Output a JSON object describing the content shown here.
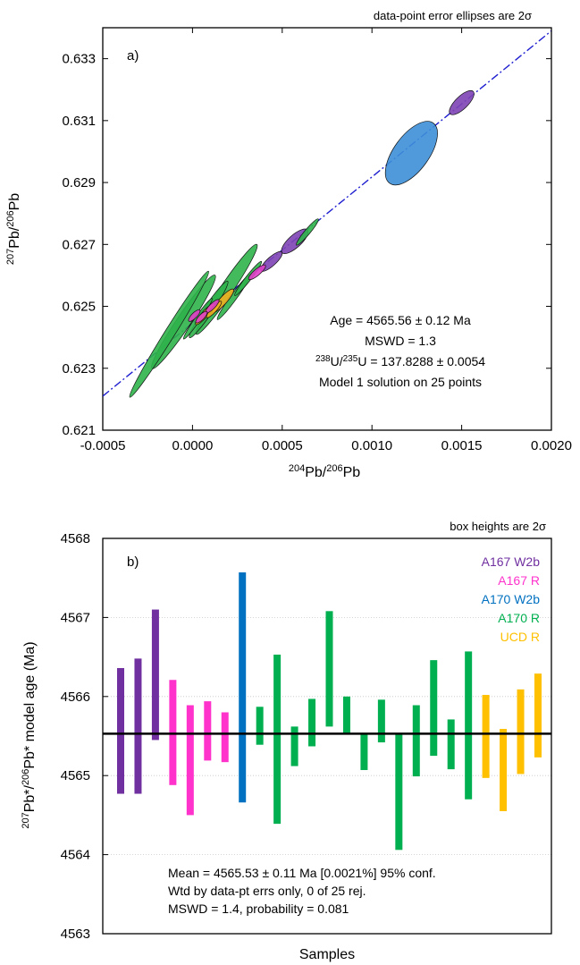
{
  "panel_a": {
    "note": "data-point error ellipses are 2σ",
    "panel_label": "a)",
    "xlabel": {
      "sup": "204",
      "base": "Pb/",
      "sup2": "206",
      "base2": "Pb"
    },
    "ylabel": {
      "sup": "207",
      "base": "Pb/",
      "sup2": "206",
      "base2": "Pb"
    },
    "annotation": {
      "line1": "Age = 4565.56 ± 0.12 Ma",
      "line2": "MSWD = 1.3",
      "line3_sup1": "238",
      "line3_a": "U/",
      "line3_sup2": "235",
      "line3_b": "U = 137.8288 ± 0.0054",
      "line4": "Model 1 solution on 25 points"
    }
  },
  "panel_b": {
    "note": "box heights are 2σ",
    "panel_label": "b)",
    "ylabel": {
      "sup": "207",
      "a": "Pb*/",
      "sup2": "206",
      "b": "Pb* model age (Ma)"
    },
    "xlabel": "Samples",
    "legend": [
      {
        "label": "A167 W2b",
        "color": "#7030a0"
      },
      {
        "label": "A167 R",
        "color": "#ff33cc"
      },
      {
        "label": "A170 W2b",
        "color": "#0070c0"
      },
      {
        "label": "A170 R",
        "color": "#00b050"
      },
      {
        "label": "UCD R",
        "color": "#ffc000"
      }
    ],
    "stats": {
      "line1": "Mean = 4565.53 ± 0.11 Ma [0.0021%]  95% conf.",
      "line2": "Wtd by data-pt errs only, 0 of 25 rej.",
      "line3": "MSWD = 1.4, probability = 0.081"
    }
  },
  "chart_data": [
    {
      "type": "scatter",
      "title": "",
      "xlabel": "204Pb/206Pb",
      "ylabel": "207Pb/206Pb",
      "xlim": [
        -0.0005,
        0.002
      ],
      "ylim": [
        0.621,
        0.634
      ],
      "xticks": [
        "-0.0005",
        "0.0000",
        "0.0005",
        "0.0010",
        "0.0015",
        "0.0020"
      ],
      "yticks": [
        "0.621",
        "0.623",
        "0.625",
        "0.627",
        "0.629",
        "0.631",
        "0.633"
      ],
      "isochron": {
        "x": [
          -0.0005,
          0.002
        ],
        "y": [
          0.6221,
          0.6339
        ],
        "color": "#1f1fd0",
        "style": "dash-dot"
      },
      "ellipses": [
        {
          "group": "A170 W2b",
          "color": "#3d8fd8",
          "cx": 0.00122,
          "cy": 0.62995,
          "rx": 0.00028,
          "ry": 0.0012,
          "angle": 54
        },
        {
          "group": "A167 W2b",
          "color": "#7e44b4",
          "cx": 0.0015,
          "cy": 0.63158,
          "rx": 0.0001,
          "ry": 0.00052,
          "angle": 44
        },
        {
          "group": "A167 W2b",
          "color": "#7e44b4",
          "cx": 0.00057,
          "cy": 0.6271,
          "rx": 0.0001,
          "ry": 0.00055,
          "angle": 42
        },
        {
          "group": "A167 W2b",
          "color": "#7e44b4",
          "cx": 0.00044,
          "cy": 0.62645,
          "rx": 7e-05,
          "ry": 0.00045,
          "angle": 42
        },
        {
          "group": "A170 R",
          "color": "#2fb34a",
          "cx": 0.00019,
          "cy": 0.62555,
          "rx": 0.0001,
          "ry": 0.00175,
          "angle": 56
        },
        {
          "group": "A170 R",
          "color": "#2fb34a",
          "cx": -5e-05,
          "cy": 0.6245,
          "rx": 0.00011,
          "ry": 0.00182,
          "angle": 56
        },
        {
          "group": "A170 R",
          "color": "#2fb34a",
          "cx": -0.00013,
          "cy": 0.6241,
          "rx": 8e-05,
          "ry": 0.0024,
          "angle": 58
        },
        {
          "group": "A170 R",
          "color": "#2fb34a",
          "cx": 9e-05,
          "cy": 0.6249,
          "rx": 7e-05,
          "ry": 0.0011,
          "angle": 56
        },
        {
          "group": "A170 R",
          "color": "#2fb34a",
          "cx": 0.00023,
          "cy": 0.6253,
          "rx": 5e-05,
          "ry": 0.0009,
          "angle": 54
        },
        {
          "group": "A170 R",
          "color": "#2fb34a",
          "cx": 0.00064,
          "cy": 0.6274,
          "rx": 3e-05,
          "ry": 0.00055,
          "angle": 50
        },
        {
          "group": "A170 R",
          "color": "#2fb34a",
          "cx": 0.00031,
          "cy": 0.6259,
          "rx": 4e-05,
          "ry": 0.0007,
          "angle": 52
        },
        {
          "group": "A170 R",
          "color": "#2fb34a",
          "cx": 3e-05,
          "cy": 0.6246,
          "rx": 4e-05,
          "ry": 0.0008,
          "angle": 55
        },
        {
          "group": "UCD R",
          "color": "#f0b020",
          "cx": 0.00017,
          "cy": 0.62518,
          "rx": 6e-05,
          "ry": 0.0005,
          "angle": 48
        },
        {
          "group": "UCD R",
          "color": "#f0b020",
          "cx": 7e-05,
          "cy": 0.62475,
          "rx": 5e-05,
          "ry": 0.00045,
          "angle": 48
        },
        {
          "group": "UCD R",
          "color": "#f0b020",
          "cx": 0.00012,
          "cy": 0.6249,
          "rx": 4e-05,
          "ry": 0.00035,
          "angle": 48
        },
        {
          "group": "A167 R",
          "color": "#e040c8",
          "cx": 0.00036,
          "cy": 0.6261,
          "rx": 5e-05,
          "ry": 0.00035,
          "angle": 40
        },
        {
          "group": "A167 R",
          "color": "#e040c8",
          "cx": 0.00011,
          "cy": 0.625,
          "rx": 4e-05,
          "ry": 0.0003,
          "angle": 45
        },
        {
          "group": "A167 R",
          "color": "#e040c8",
          "cx": 5e-05,
          "cy": 0.62465,
          "rx": 4e-05,
          "ry": 0.00025,
          "angle": 45
        },
        {
          "group": "A167 R",
          "color": "#e040c8",
          "cx": 1e-05,
          "cy": 0.6247,
          "rx": 3e-05,
          "ry": 0.00025,
          "angle": 45
        }
      ]
    },
    {
      "type": "bar",
      "title": "",
      "xlabel": "Samples",
      "ylabel": "207Pb*/206Pb* model age (Ma)",
      "ylim": [
        4563,
        4568
      ],
      "yticks": [
        "4563",
        "4564",
        "4565",
        "4566",
        "4567",
        "4568"
      ],
      "mean": 4565.53,
      "grid": true,
      "boxes": [
        {
          "group": "A167 W2b",
          "color": "#7030a0",
          "low": 4564.77,
          "high": 4566.36
        },
        {
          "group": "A167 W2b",
          "color": "#7030a0",
          "low": 4564.77,
          "high": 4566.48
        },
        {
          "group": "A167 W2b",
          "color": "#7030a0",
          "low": 4565.45,
          "high": 4567.1
        },
        {
          "group": "A167 R",
          "color": "#ff33cc",
          "low": 4564.88,
          "high": 4566.21
        },
        {
          "group": "A167 R",
          "color": "#ff33cc",
          "low": 4564.5,
          "high": 4565.89
        },
        {
          "group": "A167 R",
          "color": "#ff33cc",
          "low": 4565.19,
          "high": 4565.94
        },
        {
          "group": "A167 R",
          "color": "#ff33cc",
          "low": 4565.17,
          "high": 4565.8
        },
        {
          "group": "A170 W2b",
          "color": "#0070c0",
          "low": 4564.66,
          "high": 4567.57
        },
        {
          "group": "A170 R",
          "color": "#00b050",
          "low": 4565.39,
          "high": 4565.87
        },
        {
          "group": "A170 R",
          "color": "#00b050",
          "low": 4564.39,
          "high": 4566.53
        },
        {
          "group": "A170 R",
          "color": "#00b050",
          "low": 4565.12,
          "high": 4565.62
        },
        {
          "group": "A170 R",
          "color": "#00b050",
          "low": 4565.37,
          "high": 4565.97
        },
        {
          "group": "A170 R",
          "color": "#00b050",
          "low": 4565.62,
          "high": 4567.08
        },
        {
          "group": "A170 R",
          "color": "#00b050",
          "low": 4565.53,
          "high": 4566.0
        },
        {
          "group": "A170 R",
          "color": "#00b050",
          "low": 4565.07,
          "high": 4565.53
        },
        {
          "group": "A170 R",
          "color": "#00b050",
          "low": 4565.42,
          "high": 4565.96
        },
        {
          "group": "A170 R",
          "color": "#00b050",
          "low": 4564.06,
          "high": 4565.53
        },
        {
          "group": "A170 R",
          "color": "#00b050",
          "low": 4564.99,
          "high": 4565.89
        },
        {
          "group": "A170 R",
          "color": "#00b050",
          "low": 4565.25,
          "high": 4566.46
        },
        {
          "group": "A170 R",
          "color": "#00b050",
          "low": 4565.08,
          "high": 4565.71
        },
        {
          "group": "A170 R",
          "color": "#00b050",
          "low": 4564.7,
          "high": 4566.57
        },
        {
          "group": "UCD R",
          "color": "#ffc000",
          "low": 4564.97,
          "high": 4566.02
        },
        {
          "group": "UCD R",
          "color": "#ffc000",
          "low": 4564.55,
          "high": 4565.59
        },
        {
          "group": "UCD R",
          "color": "#ffc000",
          "low": 4565.02,
          "high": 4566.09
        },
        {
          "group": "UCD R",
          "color": "#ffc000",
          "low": 4565.23,
          "high": 4566.29
        }
      ]
    }
  ]
}
